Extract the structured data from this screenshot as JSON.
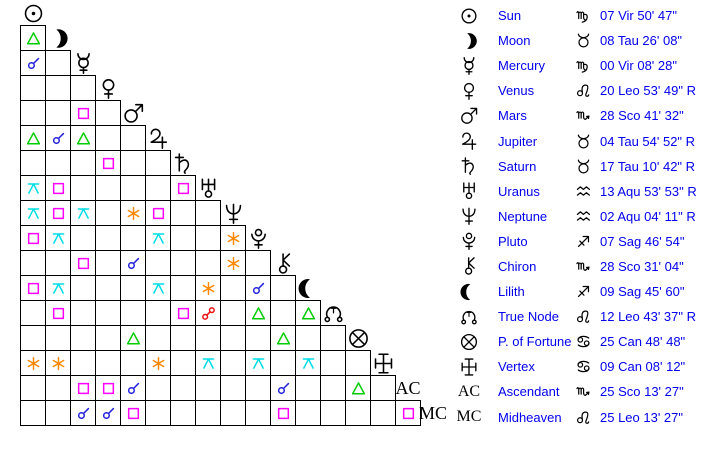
{
  "colors": {
    "text": "#0000ee",
    "glyph": "#000000",
    "conjunction": "#2222dd",
    "sextile": "#ff8800",
    "square": "#ff00ff",
    "trine": "#00cc00",
    "opposition": "#ee1111",
    "quincunx": "#00dde8"
  },
  "grid": {
    "rows": [
      {
        "planet": "sun",
        "aspects": {}
      },
      {
        "planet": "moon",
        "aspects": {
          "1": "trine"
        }
      },
      {
        "planet": "mercury",
        "aspects": {
          "1": "conjunction"
        }
      },
      {
        "planet": "venus",
        "aspects": {}
      },
      {
        "planet": "mars",
        "aspects": {
          "3": "square"
        }
      },
      {
        "planet": "jupiter",
        "aspects": {
          "1": "trine",
          "2": "conjunction",
          "3": "trine"
        }
      },
      {
        "planet": "saturn",
        "aspects": {
          "4": "square"
        }
      },
      {
        "planet": "uranus",
        "aspects": {
          "1": "quincunx",
          "2": "square",
          "7": "square"
        }
      },
      {
        "planet": "neptune",
        "aspects": {
          "1": "quincunx",
          "2": "square",
          "3": "quincunx",
          "5": "sextile",
          "6": "square"
        }
      },
      {
        "planet": "pluto",
        "aspects": {
          "1": "square",
          "2": "quincunx",
          "6": "quincunx",
          "9": "sextile"
        }
      },
      {
        "planet": "chiron",
        "aspects": {
          "3": "square",
          "5": "conjunction",
          "9": "sextile"
        }
      },
      {
        "planet": "lilith",
        "aspects": {
          "1": "square",
          "2": "quincunx",
          "6": "quincunx",
          "8": "sextile",
          "10": "conjunction"
        }
      },
      {
        "planet": "true-node",
        "aspects": {
          "2": "square",
          "7": "square",
          "8": "opposition",
          "10": "trine",
          "12": "trine"
        }
      },
      {
        "planet": "fortune",
        "aspects": {
          "5": "trine",
          "11": "trine"
        }
      },
      {
        "planet": "vertex",
        "aspects": {
          "1": "sextile",
          "2": "sextile",
          "6": "sextile",
          "8": "quincunx",
          "10": "quincunx",
          "12": "quincunx"
        }
      },
      {
        "planet": "ac",
        "label": "AC",
        "aspects": {
          "3": "square",
          "4": "square",
          "5": "conjunction",
          "11": "conjunction",
          "14": "trine"
        }
      },
      {
        "planet": "mc",
        "label": "MC",
        "aspects": {
          "3": "conjunction",
          "4": "conjunction",
          "5": "square",
          "11": "square",
          "16": "square"
        }
      }
    ]
  },
  "legend": {
    "rows": [
      {
        "planet": "sun",
        "label": "Sun",
        "sign": "vir",
        "position": "07 Vir 50' 47\""
      },
      {
        "planet": "moon",
        "label": "Moon",
        "sign": "tau",
        "position": "08 Tau 26' 08\""
      },
      {
        "planet": "mercury",
        "label": "Mercury",
        "sign": "vir",
        "position": "00 Vir 08' 28\""
      },
      {
        "planet": "venus",
        "label": "Venus",
        "sign": "leo",
        "position": "20 Leo 53' 49\" R"
      },
      {
        "planet": "mars",
        "label": "Mars",
        "sign": "sco",
        "position": "28 Sco 41' 32\""
      },
      {
        "planet": "jupiter",
        "label": "Jupiter",
        "sign": "tau",
        "position": "04 Tau 54' 52\" R"
      },
      {
        "planet": "saturn",
        "label": "Saturn",
        "sign": "tau",
        "position": "17 Tau 10' 42\" R"
      },
      {
        "planet": "uranus",
        "label": "Uranus",
        "sign": "aqu",
        "position": "13 Aqu 53' 53\" R"
      },
      {
        "planet": "neptune",
        "label": "Neptune",
        "sign": "aqu",
        "position": "02 Aqu 04' 11\" R"
      },
      {
        "planet": "pluto",
        "label": "Pluto",
        "sign": "sag",
        "position": "07 Sag 46' 54\""
      },
      {
        "planet": "chiron",
        "label": "Chiron",
        "sign": "sco",
        "position": "28 Sco 31' 04\""
      },
      {
        "planet": "lilith",
        "label": "Lilith",
        "sign": "sag",
        "position": "09 Sag 45' 60\""
      },
      {
        "planet": "true-node",
        "label": "True Node",
        "sign": "leo",
        "position": "12 Leo 43' 37\" R"
      },
      {
        "planet": "fortune",
        "label": "P. of Fortune",
        "sign": "can",
        "position": "25 Can 48' 48\""
      },
      {
        "planet": "vertex",
        "label": "Vertex",
        "sign": "can",
        "position": "09 Can 08' 12\""
      },
      {
        "planet": "ac",
        "glyph_label": "AC",
        "label": "Ascendant",
        "sign": "sco",
        "position": "25 Sco 13' 27\""
      },
      {
        "planet": "mc",
        "glyph_label": "MC",
        "label": "Midheaven",
        "sign": "leo",
        "position": "25 Leo 13' 27\""
      }
    ]
  }
}
